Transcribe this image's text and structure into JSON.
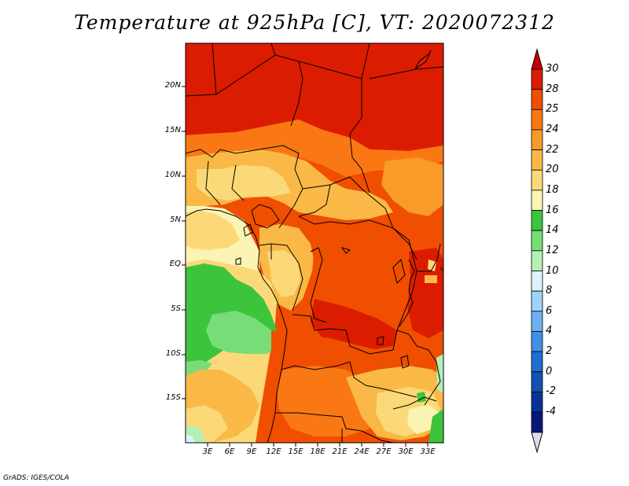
{
  "title": "Temperature at 925hPa [C], VT: 2020072312",
  "credit": "GrADS: IGES/COLA",
  "lat_ticks": [
    "20N",
    "15N",
    "10N",
    "5N",
    "EQ",
    "5S",
    "10S",
    "15S"
  ],
  "lon_ticks": [
    "3E",
    "6E",
    "9E",
    "12E",
    "15E",
    "18E",
    "21E",
    "24E",
    "27E",
    "30E",
    "33E"
  ],
  "colorbar": {
    "labels": [
      "30",
      "28",
      "25",
      "24",
      "22",
      "20",
      "18",
      "16",
      "14",
      "12",
      "10",
      "8",
      "6",
      "4",
      "2",
      "0",
      "-2",
      "-4"
    ],
    "colors": [
      "#dc1c00",
      "#f04e00",
      "#fa7814",
      "#fa9a28",
      "#fab946",
      "#fcd978",
      "#fcf4b4",
      "#3cc43c",
      "#78dc78",
      "#b4f0b4",
      "#dcf2fc",
      "#a0d2fa",
      "#6eaff0",
      "#4090e6",
      "#1f6ed2",
      "#1450b4",
      "#0a3296",
      "#081878"
    ],
    "top_arrow_color": "#c80000",
    "bottom_arrow_color": "#dcdcf0"
  }
}
